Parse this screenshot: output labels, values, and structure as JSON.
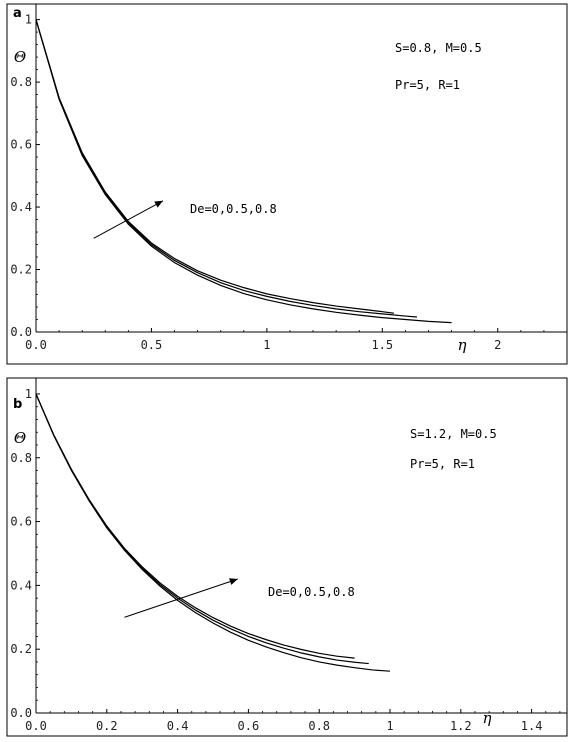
{
  "chart_data": [
    {
      "type": "line",
      "panel_label": "a",
      "xlabel": "η",
      "ylabel": "Θ",
      "xlim": [
        0,
        2.3
      ],
      "ylim": [
        0,
        1.05
      ],
      "x_ticks": [
        "0.0",
        "0.5",
        "1",
        "1.5",
        "2"
      ],
      "x_tick_values": [
        0,
        0.5,
        1,
        1.5,
        2
      ],
      "y_ticks": [
        "0.0",
        "0.2",
        "0.4",
        "0.6",
        "0.8",
        "1"
      ],
      "y_tick_values": [
        0,
        0.2,
        0.4,
        0.6,
        0.8,
        1
      ],
      "params": [
        "S=0.8, M=0.5",
        "Pr=5, R=1"
      ],
      "annotation": "De=0,0.5,0.8",
      "arrow": {
        "from": [
          0.25,
          0.3
        ],
        "to": [
          0.55,
          0.42
        ]
      },
      "series": [
        {
          "x": [
            0,
            0.1,
            0.2,
            0.3,
            0.4,
            0.5,
            0.6,
            0.7,
            0.8,
            0.9,
            1.0,
            1.1,
            1.2,
            1.3,
            1.4,
            1.5,
            1.6,
            1.7,
            1.8
          ],
          "values": [
            1.0,
            0.745,
            0.565,
            0.44,
            0.345,
            0.275,
            0.222,
            0.182,
            0.149,
            0.123,
            0.103,
            0.087,
            0.074,
            0.063,
            0.054,
            0.046,
            0.04,
            0.034,
            0.03
          ]
        },
        {
          "x": [
            0,
            0.1,
            0.2,
            0.3,
            0.4,
            0.5,
            0.6,
            0.7,
            0.8,
            0.9,
            1.0,
            1.1,
            1.2,
            1.3,
            1.4,
            1.5,
            1.6,
            1.65
          ],
          "values": [
            1.0,
            0.748,
            0.57,
            0.444,
            0.35,
            0.28,
            0.229,
            0.19,
            0.158,
            0.133,
            0.114,
            0.098,
            0.085,
            0.074,
            0.065,
            0.058,
            0.051,
            0.048
          ]
        },
        {
          "x": [
            0,
            0.1,
            0.2,
            0.3,
            0.4,
            0.5,
            0.6,
            0.7,
            0.8,
            0.9,
            1.0,
            1.1,
            1.2,
            1.3,
            1.4,
            1.5,
            1.55
          ],
          "values": [
            1.0,
            0.75,
            0.574,
            0.448,
            0.354,
            0.285,
            0.235,
            0.196,
            0.166,
            0.142,
            0.122,
            0.107,
            0.094,
            0.083,
            0.074,
            0.065,
            0.06
          ]
        }
      ]
    },
    {
      "type": "line",
      "panel_label": "b",
      "xlabel": "η",
      "ylabel": "Θ",
      "xlim": [
        0,
        1.5
      ],
      "ylim": [
        0,
        1.05
      ],
      "x_ticks": [
        "0.0",
        "0.2",
        "0.4",
        "0.6",
        "0.8",
        "1",
        "1.2",
        "1.4"
      ],
      "x_tick_values": [
        0,
        0.2,
        0.4,
        0.6,
        0.8,
        1,
        1.2,
        1.4
      ],
      "y_ticks": [
        "0.0",
        "0.2",
        "0.4",
        "0.6",
        "0.8",
        "1"
      ],
      "y_tick_values": [
        0,
        0.2,
        0.4,
        0.6,
        0.8,
        1
      ],
      "params": [
        "S=1.2, M=0.5",
        "Pr=5, R=1"
      ],
      "annotation": "De=0,0.5,0.8",
      "arrow": {
        "from": [
          0.25,
          0.3
        ],
        "to": [
          0.57,
          0.42
        ]
      },
      "series": [
        {
          "x": [
            0,
            0.05,
            0.1,
            0.15,
            0.2,
            0.25,
            0.3,
            0.35,
            0.4,
            0.45,
            0.5,
            0.55,
            0.6,
            0.65,
            0.7,
            0.75,
            0.8,
            0.85,
            0.9,
            0.95,
            1.0
          ],
          "values": [
            1.0,
            0.87,
            0.76,
            0.665,
            0.58,
            0.51,
            0.45,
            0.398,
            0.353,
            0.315,
            0.282,
            0.253,
            0.228,
            0.207,
            0.189,
            0.173,
            0.16,
            0.15,
            0.142,
            0.135,
            0.131
          ]
        },
        {
          "x": [
            0,
            0.05,
            0.1,
            0.15,
            0.2,
            0.25,
            0.3,
            0.35,
            0.4,
            0.45,
            0.5,
            0.55,
            0.6,
            0.65,
            0.7,
            0.75,
            0.8,
            0.85,
            0.9,
            0.94
          ],
          "values": [
            1.0,
            0.871,
            0.762,
            0.667,
            0.583,
            0.513,
            0.454,
            0.403,
            0.36,
            0.323,
            0.291,
            0.264,
            0.24,
            0.22,
            0.203,
            0.188,
            0.176,
            0.166,
            0.159,
            0.155
          ]
        },
        {
          "x": [
            0,
            0.05,
            0.1,
            0.15,
            0.2,
            0.25,
            0.3,
            0.35,
            0.4,
            0.45,
            0.5,
            0.55,
            0.6,
            0.65,
            0.7,
            0.75,
            0.8,
            0.85,
            0.9
          ],
          "values": [
            1.0,
            0.872,
            0.764,
            0.669,
            0.586,
            0.516,
            0.458,
            0.408,
            0.366,
            0.33,
            0.299,
            0.272,
            0.249,
            0.23,
            0.213,
            0.199,
            0.187,
            0.178,
            0.172
          ]
        }
      ]
    }
  ]
}
